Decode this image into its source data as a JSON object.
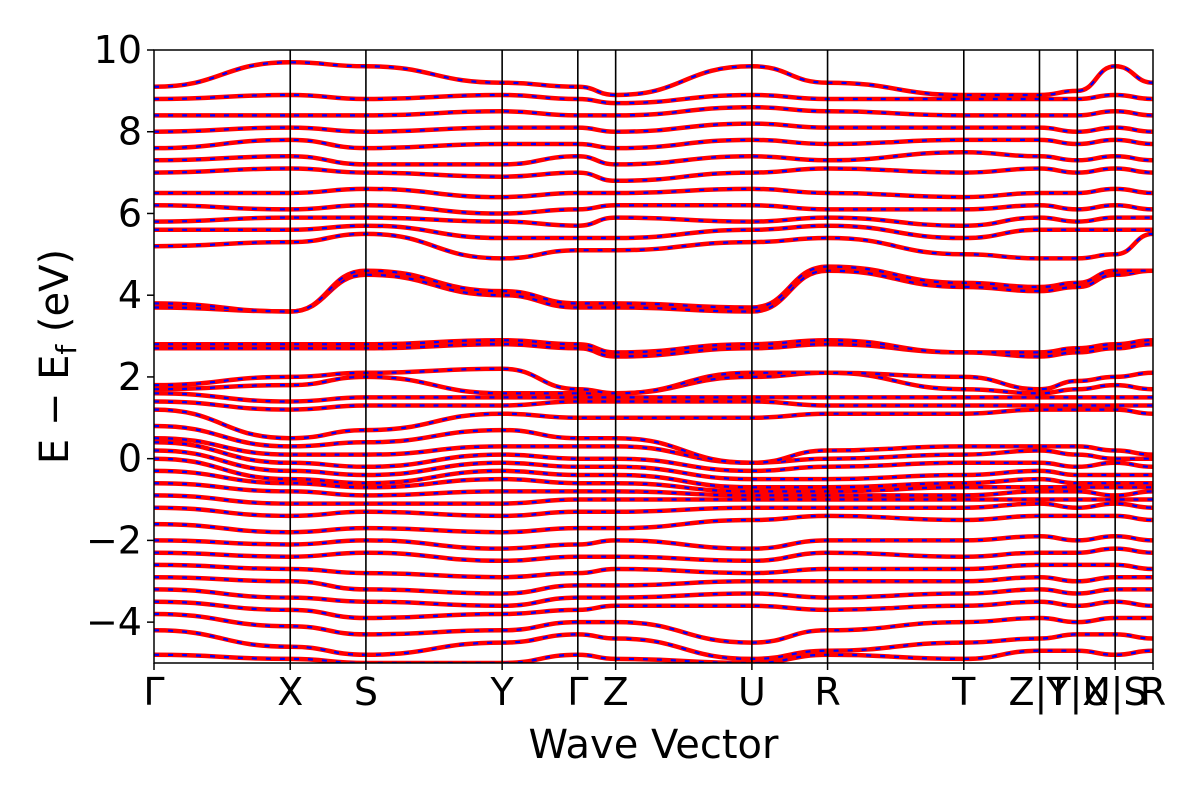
{
  "chart_data": {
    "type": "line",
    "title": "",
    "xlabel": "Wave Vector",
    "ylabel": "E − E_f (eV)",
    "ylabel_parts": {
      "main": "E − E",
      "sub": "f",
      "unit": " (eV)"
    },
    "ylim": [
      -5,
      10
    ],
    "yticks": [
      {
        "value": -4,
        "label": "−4"
      },
      {
        "value": -2,
        "label": "−2"
      },
      {
        "value": 0,
        "label": "0"
      },
      {
        "value": 2,
        "label": "2"
      },
      {
        "value": 4,
        "label": "4"
      },
      {
        "value": 6,
        "label": "6"
      },
      {
        "value": 8,
        "label": "8"
      },
      {
        "value": 10,
        "label": "10"
      }
    ],
    "xlim": [
      0,
      26.4
    ],
    "kpoints": [
      {
        "label": "Γ",
        "x": 0.0
      },
      {
        "label": "X",
        "x": 3.6
      },
      {
        "label": "S",
        "x": 5.6
      },
      {
        "label": "Y",
        "x": 9.2
      },
      {
        "label": "Γ",
        "x": 11.2
      },
      {
        "label": "Z",
        "x": 12.2
      },
      {
        "label": "U",
        "x": 15.8
      },
      {
        "label": "R",
        "x": 17.8
      },
      {
        "label": "T",
        "x": 21.4
      },
      {
        "label": "Z|T",
        "x": 23.4
      },
      {
        "label": "Y|X",
        "x": 24.4
      },
      {
        "label": "U|S",
        "x": 25.4
      },
      {
        "label": "R",
        "x": 26.4
      }
    ],
    "series_colors": {
      "solid": "#ff0000",
      "dashed": "#0000ff"
    },
    "bands": [
      {
        "y": [
          -4.8,
          -4.9,
          -5.0,
          -5.0,
          -4.8,
          -4.9,
          -5.0,
          -4.8,
          -4.9,
          -4.7,
          -4.7,
          -4.8,
          -4.7
        ]
      },
      {
        "y": [
          -4.2,
          -4.6,
          -4.8,
          -4.5,
          -4.3,
          -4.4,
          -4.9,
          -4.7,
          -4.5,
          -4.4,
          -4.3,
          -4.3,
          -4.4
        ]
      },
      {
        "y": [
          -3.8,
          -4.1,
          -4.3,
          -4.2,
          -4.0,
          -4.0,
          -4.5,
          -4.2,
          -4.0,
          -3.9,
          -4.0,
          -3.9,
          -3.9
        ]
      },
      {
        "y": [
          -3.5,
          -3.7,
          -3.9,
          -3.8,
          -3.7,
          -3.6,
          -3.6,
          -3.7,
          -3.6,
          -3.5,
          -3.6,
          -3.5,
          -3.6
        ]
      },
      {
        "y": [
          -3.2,
          -3.4,
          -3.5,
          -3.6,
          -3.4,
          -3.4,
          -3.3,
          -3.4,
          -3.3,
          -3.2,
          -3.3,
          -3.2,
          -3.2
        ]
      },
      {
        "y": [
          -2.9,
          -3.0,
          -3.2,
          -3.3,
          -3.1,
          -3.1,
          -3.0,
          -3.0,
          -3.0,
          -2.9,
          -3.0,
          -2.9,
          -2.9
        ]
      },
      {
        "y": [
          -2.6,
          -2.7,
          -2.8,
          -2.9,
          -2.8,
          -2.7,
          -2.8,
          -2.7,
          -2.7,
          -2.6,
          -2.6,
          -2.6,
          -2.7
        ]
      },
      {
        "y": [
          -2.3,
          -2.4,
          -2.3,
          -2.5,
          -2.4,
          -2.4,
          -2.5,
          -2.3,
          -2.4,
          -2.3,
          -2.3,
          -2.2,
          -2.3
        ]
      },
      {
        "y": [
          -2.0,
          -2.1,
          -2.0,
          -2.2,
          -2.1,
          -2.0,
          -2.2,
          -2.0,
          -2.0,
          -1.9,
          -2.0,
          -1.9,
          -2.0
        ]
      },
      {
        "y": [
          -1.6,
          -1.8,
          -1.7,
          -1.8,
          -1.7,
          -1.7,
          -1.5,
          -1.4,
          -1.5,
          -1.4,
          -1.4,
          -1.4,
          -1.5
        ]
      },
      {
        "y": [
          -1.2,
          -1.4,
          -1.3,
          -1.4,
          -1.3,
          -1.3,
          -1.2,
          -1.2,
          -1.2,
          -1.1,
          -1.2,
          -1.1,
          -1.2
        ]
      },
      {
        "y": [
          -0.9,
          -1.1,
          -1.1,
          -1.1,
          -1.0,
          -1.0,
          -1.0,
          -1.0,
          -1.0,
          -1.0,
          -1.0,
          -1.0,
          -1.0
        ]
      },
      {
        "y": [
          -0.6,
          -0.8,
          -0.9,
          -0.8,
          -0.8,
          -0.8,
          -0.9,
          -0.9,
          -0.9,
          -0.8,
          -0.8,
          -0.9,
          -0.8
        ]
      },
      {
        "y": [
          -0.3,
          -0.6,
          -0.7,
          -0.5,
          -0.6,
          -0.6,
          -0.8,
          -0.8,
          -0.7,
          -0.7,
          -0.7,
          -0.7,
          -0.7
        ]
      },
      {
        "y": [
          0.0,
          -0.5,
          -0.6,
          -0.3,
          -0.4,
          -0.4,
          -0.7,
          -0.7,
          -0.6,
          -0.5,
          -0.6,
          -0.6,
          -0.6
        ]
      },
      {
        "y": [
          0.2,
          -0.3,
          -0.4,
          -0.1,
          -0.2,
          -0.2,
          -0.5,
          -0.5,
          -0.4,
          -0.3,
          -0.4,
          -0.4,
          -0.4
        ]
      },
      {
        "y": [
          0.4,
          -0.1,
          -0.2,
          0.1,
          0.0,
          0.0,
          -0.3,
          -0.2,
          -0.1,
          -0.1,
          -0.2,
          -0.1,
          -0.2
        ]
      },
      {
        "y": [
          0.5,
          0.1,
          0.1,
          0.3,
          0.3,
          0.3,
          -0.1,
          0.0,
          0.1,
          0.2,
          0.1,
          0.0,
          0.0
        ]
      },
      {
        "y": [
          0.8,
          0.3,
          0.4,
          0.7,
          0.5,
          0.5,
          -0.1,
          0.2,
          0.3,
          0.3,
          0.3,
          0.2,
          0.1
        ]
      },
      {
        "y": [
          1.2,
          0.5,
          0.7,
          1.1,
          1.0,
          1.0,
          1.0,
          1.1,
          1.1,
          1.2,
          1.2,
          1.2,
          1.1
        ]
      },
      {
        "y": [
          1.4,
          1.2,
          1.3,
          1.3,
          1.4,
          1.4,
          1.4,
          1.3,
          1.3,
          1.3,
          1.3,
          1.3,
          1.3
        ]
      },
      {
        "y": [
          1.6,
          1.4,
          1.5,
          1.5,
          1.5,
          1.5,
          1.5,
          1.5,
          1.5,
          1.5,
          1.5,
          1.5,
          1.5
        ]
      },
      {
        "y": [
          1.7,
          1.8,
          2.0,
          1.6,
          1.6,
          1.6,
          2.0,
          2.1,
          1.7,
          1.6,
          1.7,
          1.8,
          1.7
        ]
      },
      {
        "y": [
          1.8,
          2.0,
          2.1,
          2.2,
          1.7,
          1.6,
          2.1,
          2.1,
          2.0,
          1.7,
          1.9,
          2.0,
          2.1
        ]
      },
      {
        "y": [
          2.7,
          2.7,
          2.7,
          2.8,
          2.7,
          2.5,
          2.7,
          2.8,
          2.6,
          2.5,
          2.6,
          2.7,
          2.8
        ]
      },
      {
        "y": [
          2.8,
          2.8,
          2.8,
          2.9,
          2.8,
          2.6,
          2.8,
          2.9,
          2.6,
          2.6,
          2.7,
          2.8,
          2.9
        ]
      },
      {
        "y": [
          3.7,
          3.6,
          4.5,
          4.0,
          3.7,
          3.7,
          3.6,
          4.6,
          4.2,
          4.1,
          4.2,
          4.5,
          4.6
        ]
      },
      {
        "y": [
          3.8,
          3.6,
          4.6,
          4.1,
          3.8,
          3.8,
          3.7,
          4.7,
          4.3,
          4.2,
          4.3,
          4.6,
          4.6
        ]
      },
      {
        "y": [
          5.2,
          5.3,
          5.5,
          4.9,
          5.1,
          5.1,
          5.3,
          5.4,
          5.0,
          4.9,
          4.9,
          5.0,
          5.5
        ]
      },
      {
        "y": [
          5.6,
          5.6,
          5.7,
          5.4,
          5.4,
          5.4,
          5.6,
          5.7,
          5.4,
          5.6,
          5.6,
          5.6,
          5.6
        ]
      },
      {
        "y": [
          5.8,
          5.9,
          5.9,
          5.8,
          5.7,
          5.9,
          5.8,
          5.9,
          5.7,
          5.9,
          5.8,
          5.9,
          5.9
        ]
      },
      {
        "y": [
          6.2,
          6.1,
          6.2,
          6.0,
          6.1,
          6.2,
          6.2,
          6.1,
          6.1,
          6.2,
          6.1,
          6.2,
          6.1
        ]
      },
      {
        "y": [
          6.5,
          6.5,
          6.6,
          6.4,
          6.5,
          6.5,
          6.6,
          6.5,
          6.4,
          6.5,
          6.5,
          6.6,
          6.5
        ]
      },
      {
        "y": [
          7.0,
          7.1,
          7.0,
          6.9,
          7.0,
          6.8,
          7.0,
          7.1,
          7.0,
          7.1,
          7.0,
          7.1,
          7.0
        ]
      },
      {
        "y": [
          7.3,
          7.4,
          7.2,
          7.2,
          7.4,
          7.2,
          7.4,
          7.3,
          7.5,
          7.4,
          7.3,
          7.4,
          7.3
        ]
      },
      {
        "y": [
          7.6,
          7.8,
          7.6,
          7.7,
          7.7,
          7.6,
          7.8,
          7.7,
          7.8,
          7.8,
          7.7,
          7.8,
          7.7
        ]
      },
      {
        "y": [
          8.0,
          8.1,
          8.0,
          8.1,
          8.1,
          8.0,
          8.2,
          8.1,
          8.1,
          8.1,
          8.0,
          8.1,
          8.0
        ]
      },
      {
        "y": [
          8.4,
          8.4,
          8.4,
          8.5,
          8.4,
          8.4,
          8.6,
          8.5,
          8.4,
          8.4,
          8.4,
          8.5,
          8.4
        ]
      },
      {
        "y": [
          8.8,
          8.9,
          8.8,
          8.9,
          8.8,
          8.7,
          8.9,
          8.8,
          8.8,
          8.8,
          8.8,
          8.9,
          8.8
        ]
      },
      {
        "y": [
          9.1,
          9.7,
          9.6,
          9.2,
          9.1,
          8.9,
          9.6,
          9.2,
          8.9,
          8.9,
          9.0,
          9.6,
          9.2
        ]
      }
    ]
  }
}
